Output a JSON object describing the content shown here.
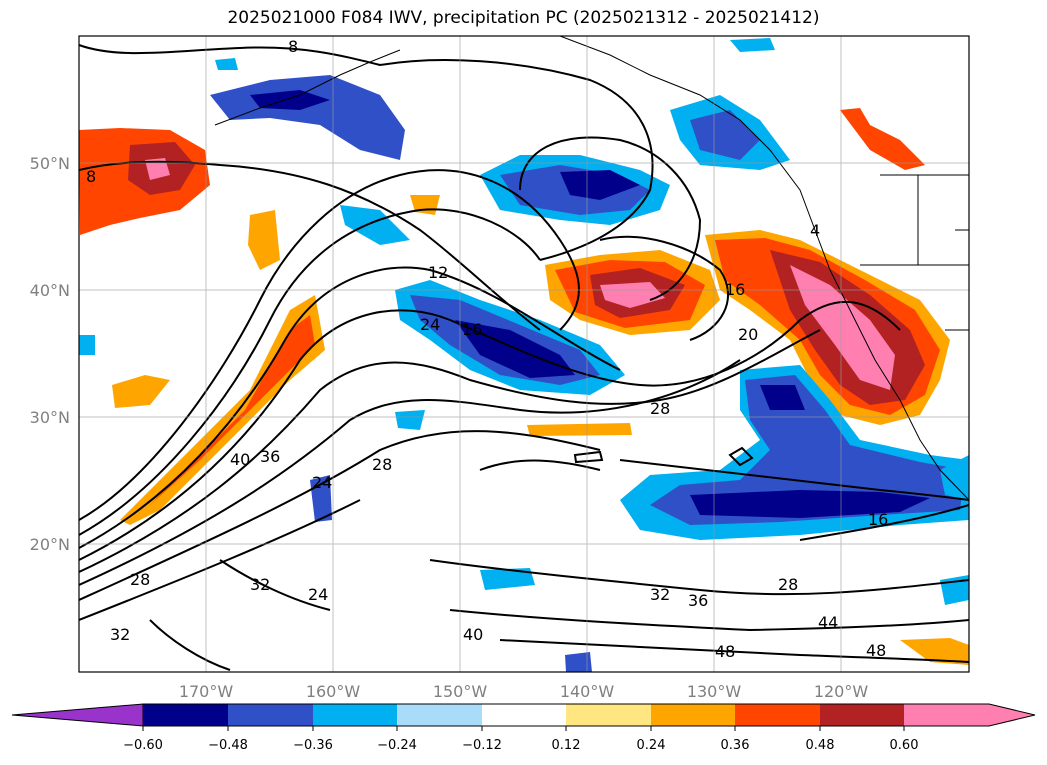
{
  "title": "2025021000 F084 IWV, precipitation PC (2025021312 - 2025021412)",
  "map": {
    "lon_labels": [
      "170°W",
      "160°W",
      "150°W",
      "140°W",
      "130°W",
      "120°W"
    ],
    "lat_labels": [
      "50°N",
      "40°N",
      "30°N",
      "20°N"
    ],
    "contour_labels": [
      "8",
      "8",
      "12",
      "16",
      "24",
      "16",
      "20",
      "28",
      "40",
      "36",
      "28",
      "24",
      "24",
      "32",
      "28",
      "32",
      "32",
      "36",
      "28",
      "40",
      "48",
      "44",
      "48",
      "16",
      "4"
    ]
  },
  "colorbar": {
    "ticks": [
      "−0.60",
      "−0.48",
      "−0.36",
      "−0.24",
      "−0.12",
      "0.12",
      "0.24",
      "0.36",
      "0.48",
      "0.60"
    ],
    "colors": [
      "#9933cc",
      "#00008b",
      "#3050c8",
      "#00b0f0",
      "#a8dcf8",
      "#ffffff",
      "#ffe680",
      "#ffa500",
      "#ff4500",
      "#b22222",
      "#ff80b0"
    ]
  }
}
